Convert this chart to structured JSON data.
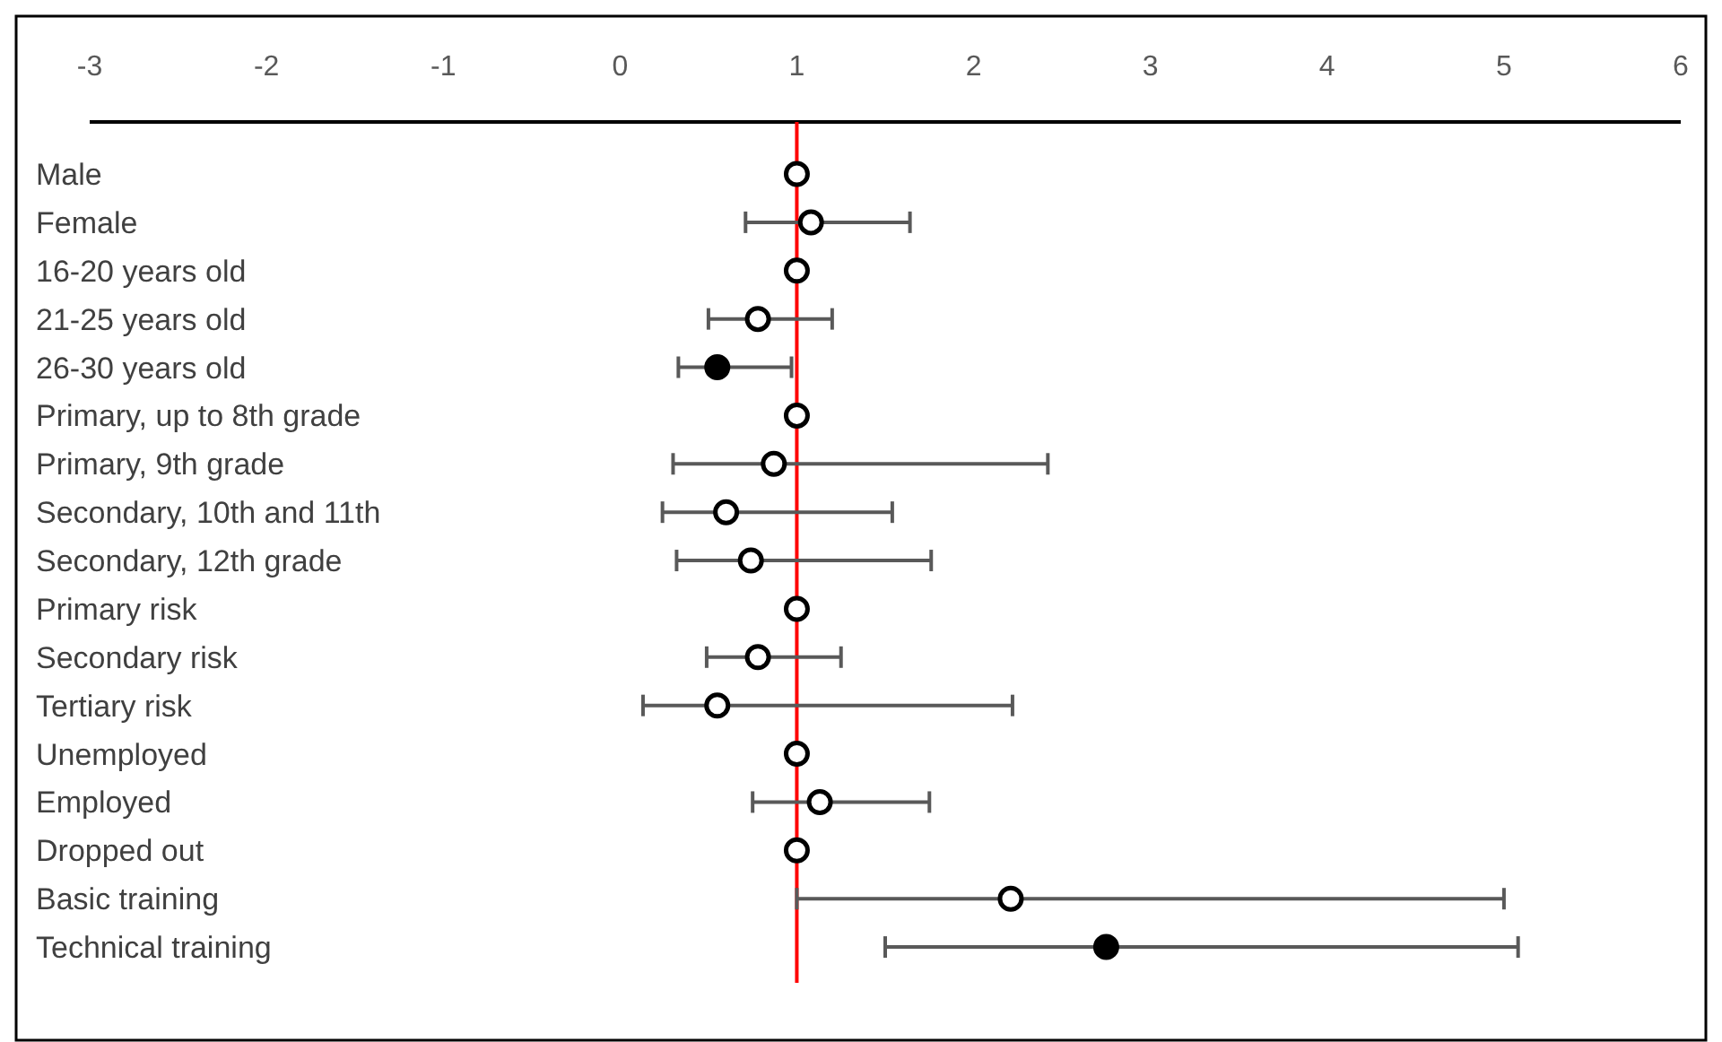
{
  "chart_data": {
    "type": "scatter",
    "orientation": "horizontal",
    "categories": [
      "Male",
      "Female",
      "16-20 years old",
      "21-25 years old",
      "26-30 years old",
      "Primary, up to 8th grade",
      "Primary, 9th grade",
      "Secondary, 10th and 11th",
      "Secondary, 12th grade",
      "Primary risk",
      "Secondary risk",
      "Tertiary risk",
      "Unemployed",
      "Employed",
      "Dropped out",
      "Basic training",
      "Technical training"
    ],
    "series": [
      {
        "color": "#ffffff",
        "values": [
          1,
          1.08,
          1,
          0.78,
          null,
          1,
          0.87,
          0.6,
          0.74,
          1,
          0.78,
          0.55,
          1,
          1.13,
          1,
          2.21,
          null
        ],
        "errors": [
          null,
          [
            0.71,
            1.64
          ],
          null,
          [
            0.5,
            1.2
          ],
          null,
          null,
          [
            0.3,
            2.42
          ],
          [
            0.24,
            1.54
          ],
          [
            0.32,
            1.76
          ],
          null,
          [
            0.49,
            1.25
          ],
          [
            0.13,
            2.22
          ],
          null,
          [
            0.75,
            1.75
          ],
          null,
          [
            1.0,
            5.0
          ],
          null
        ]
      },
      {
        "color": "#000000",
        "values": [
          null,
          null,
          null,
          null,
          0.55,
          null,
          null,
          null,
          null,
          null,
          null,
          null,
          null,
          null,
          null,
          null,
          2.75
        ],
        "errors": [
          null,
          null,
          null,
          null,
          [
            0.33,
            0.97
          ],
          null,
          null,
          null,
          null,
          null,
          null,
          null,
          null,
          null,
          null,
          null,
          [
            1.5,
            5.08
          ]
        ]
      }
    ],
    "xlim": [
      -3,
      6
    ],
    "xticks": [
      -3,
      -2,
      -1,
      0,
      1,
      2,
      3,
      4,
      5,
      6
    ],
    "ref_lines": [
      {
        "axis": "x",
        "value": 1,
        "color": "#ff0000"
      }
    ],
    "marker": "circle",
    "grid": false
  }
}
